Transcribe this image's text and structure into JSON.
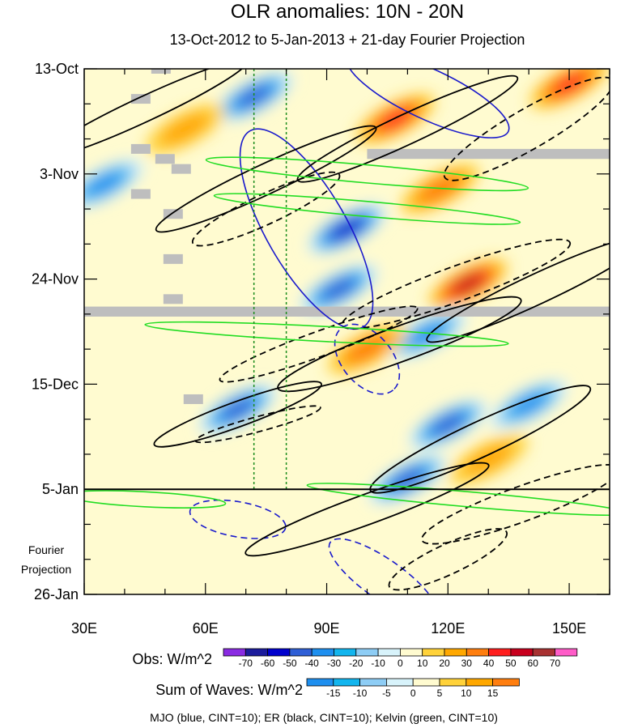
{
  "chart_data": {
    "type": "heatmap",
    "title": "OLR anomalies: 10N - 20N",
    "subtitle": "13-Oct-2012 to 5-Jan-2013 + 21-day Fourier Projection",
    "x_range_deg_east": [
      30,
      160
    ],
    "x_ticks": [
      {
        "value": 30,
        "label": "30E"
      },
      {
        "value": 60,
        "label": "60E"
      },
      {
        "value": 90,
        "label": "90E"
      },
      {
        "value": 120,
        "label": "120E"
      },
      {
        "value": 150,
        "label": "150E"
      }
    ],
    "y_ticks": [
      {
        "day": 0,
        "label": "13-Oct"
      },
      {
        "day": 21,
        "label": "3-Nov"
      },
      {
        "day": 42,
        "label": "24-Nov"
      },
      {
        "day": 63,
        "label": "15-Dec"
      },
      {
        "day": 84,
        "label": "5-Jan"
      },
      {
        "day": 105,
        "label": "26-Jan"
      }
    ],
    "y_range_days": [
      0,
      105
    ],
    "projection_start_day": 84,
    "projection_label_line1": "Fourier",
    "projection_label_line2": "Projection",
    "vertical_reference_lines_deg_east": [
      72,
      80
    ],
    "obs_colorbar": {
      "label": "Obs: W/m^2",
      "levels": [
        -70,
        -60,
        -50,
        -40,
        -30,
        -20,
        -10,
        0,
        10,
        20,
        30,
        40,
        50,
        60,
        70
      ],
      "colors": [
        "#8a2be2",
        "#1c1c9c",
        "#0000cd",
        "#2f5fd6",
        "#1e8fef",
        "#12b5ee",
        "#8ecdf5",
        "#d8f3fb",
        "#fffbd0",
        "#ffd23a",
        "#ffa800",
        "#ff7e0f",
        "#ff1e1e",
        "#c8001e",
        "#a83232",
        "#ff5cc8"
      ]
    },
    "waves_colorbar": {
      "label": "Sum of Waves: W/m^2",
      "levels": [
        -15,
        -10,
        -5,
        0,
        5,
        10,
        15
      ],
      "colors": [
        "#1e8fef",
        "#12b5ee",
        "#8ecdf5",
        "#d8f3fb",
        "#fffbd0",
        "#ffd23a",
        "#ffa800",
        "#ff7e0f"
      ]
    },
    "anomaly_features": [
      {
        "lon": 72,
        "day": 5.5,
        "value": -55
      },
      {
        "lon": 95,
        "day": 32,
        "value": -65
      },
      {
        "lon": 93,
        "day": 44,
        "value": -55
      },
      {
        "lon": 115,
        "day": 53,
        "value": -45
      },
      {
        "lon": 68,
        "day": 68,
        "value": -55
      },
      {
        "lon": 120,
        "day": 71,
        "value": -55
      },
      {
        "lon": 140,
        "day": 67,
        "value": -45
      },
      {
        "lon": 110,
        "day": 82,
        "value": -50
      },
      {
        "lon": 35,
        "day": 23,
        "value": -40
      },
      {
        "lon": 107,
        "day": 10,
        "value": 45
      },
      {
        "lon": 125,
        "day": 43,
        "value": 55
      },
      {
        "lon": 150,
        "day": 3,
        "value": 40
      },
      {
        "lon": 118,
        "day": 24,
        "value": 35
      },
      {
        "lon": 100,
        "day": 56,
        "value": 30
      },
      {
        "lon": 55,
        "day": 12,
        "value": 25
      },
      {
        "lon": 130,
        "day": 78,
        "value": 25
      }
    ],
    "missing_data_bands": [
      {
        "lon_start": 30,
        "lon_end": 160,
        "day_start": 47.5,
        "day_end": 49.5
      },
      {
        "lon_start": 100,
        "lon_end": 160,
        "day_start": 16,
        "day_end": 18
      }
    ],
    "missing_data_cells": [
      {
        "lon": 44,
        "day": 6
      },
      {
        "lon": 49,
        "day": 0
      },
      {
        "lon": 44,
        "day": 16
      },
      {
        "lon": 50,
        "day": 18
      },
      {
        "lon": 54,
        "day": 20
      },
      {
        "lon": 44,
        "day": 25
      },
      {
        "lon": 52,
        "day": 29
      },
      {
        "lon": 52,
        "day": 38
      },
      {
        "lon": 52,
        "day": 46
      },
      {
        "lon": 57,
        "day": 66
      }
    ],
    "wave_contours": [
      {
        "wave": "MJO",
        "sign": "negative",
        "lon": 85,
        "day": 32,
        "rlon": 28,
        "rday": 8,
        "angle": 60
      },
      {
        "wave": "MJO",
        "sign": "negative",
        "lon": 115,
        "day": 5,
        "rlon": 22,
        "rday": 5,
        "angle": 25
      },
      {
        "wave": "MJO",
        "sign": "positive",
        "lon": 100,
        "day": 58,
        "rlon": 10,
        "rday": 5,
        "angle": 50
      },
      {
        "wave": "MJO",
        "sign": "positive",
        "lon": 68,
        "day": 90,
        "rlon": 12,
        "rday": 3.5,
        "angle": 10
      },
      {
        "wave": "MJO",
        "sign": "positive",
        "lon": 104,
        "day": 102,
        "rlon": 16,
        "rday": 4,
        "angle": 35
      },
      {
        "wave": "ER",
        "sign": "negative",
        "lon": 45,
        "day": 8,
        "rlon": 28,
        "rday": 2.5,
        "angle": -25
      },
      {
        "wave": "ER",
        "sign": "negative",
        "lon": 75,
        "day": 22,
        "rlon": 30,
        "rday": 3,
        "angle": -25
      },
      {
        "wave": "ER",
        "sign": "negative",
        "lon": 110,
        "day": 12,
        "rlon": 30,
        "rday": 3,
        "angle": -25
      },
      {
        "wave": "ER",
        "sign": "negative",
        "lon": 108,
        "day": 55,
        "rlon": 32,
        "rday": 3.5,
        "angle": -20
      },
      {
        "wave": "ER",
        "sign": "negative",
        "lon": 68,
        "day": 69,
        "rlon": 22,
        "rday": 2.5,
        "angle": -20
      },
      {
        "wave": "ER",
        "sign": "negative",
        "lon": 128,
        "day": 74,
        "rlon": 30,
        "rday": 3.5,
        "angle": -25
      },
      {
        "wave": "ER",
        "sign": "negative",
        "lon": 100,
        "day": 88,
        "rlon": 32,
        "rday": 3,
        "angle": -20
      },
      {
        "wave": "ER",
        "sign": "negative",
        "lon": 142,
        "day": 44,
        "rlon": 30,
        "rday": 3,
        "angle": -25
      },
      {
        "wave": "ER",
        "sign": "positive",
        "lon": 75,
        "day": 28,
        "rlon": 20,
        "rday": 3,
        "angle": -25
      },
      {
        "wave": "ER",
        "sign": "positive",
        "lon": 140,
        "day": 12,
        "rlon": 24,
        "rday": 4,
        "angle": -30
      },
      {
        "wave": "ER",
        "sign": "positive",
        "lon": 122,
        "day": 43,
        "rlon": 30,
        "rday": 3.5,
        "angle": -20
      },
      {
        "wave": "ER",
        "sign": "positive",
        "lon": 88,
        "day": 55,
        "rlon": 26,
        "rday": 2.5,
        "angle": -20
      },
      {
        "wave": "ER",
        "sign": "positive",
        "lon": 138,
        "day": 87,
        "rlon": 26,
        "rday": 3.5,
        "angle": -20
      },
      {
        "wave": "ER",
        "sign": "positive",
        "lon": 120,
        "day": 98,
        "rlon": 16,
        "rday": 3,
        "angle": -25
      },
      {
        "wave": "ER",
        "sign": "positive",
        "lon": 73,
        "day": 71,
        "rlon": 16,
        "rday": 1.5,
        "angle": -15
      },
      {
        "wave": "Kelvin",
        "sign": "negative",
        "lon": 100,
        "day": 21,
        "rlon": 40,
        "rday": 1.8,
        "angle": 5
      },
      {
        "wave": "Kelvin",
        "sign": "negative",
        "lon": 100,
        "day": 28,
        "rlon": 38,
        "rday": 1.5,
        "angle": 5
      },
      {
        "wave": "Kelvin",
        "sign": "negative",
        "lon": 90,
        "day": 53,
        "rlon": 45,
        "rday": 1.5,
        "angle": 3
      },
      {
        "wave": "Kelvin",
        "sign": "negative",
        "lon": 125,
        "day": 86,
        "rlon": 40,
        "rday": 1.5,
        "angle": 5
      },
      {
        "wave": "Kelvin",
        "sign": "negative",
        "lon": 45,
        "day": 86,
        "rlon": 20,
        "rday": 1.5,
        "angle": 3
      }
    ],
    "footer": "MJO (blue, CINT=10); ER (black, CINT=10); Kelvin (green, CINT=10)"
  }
}
